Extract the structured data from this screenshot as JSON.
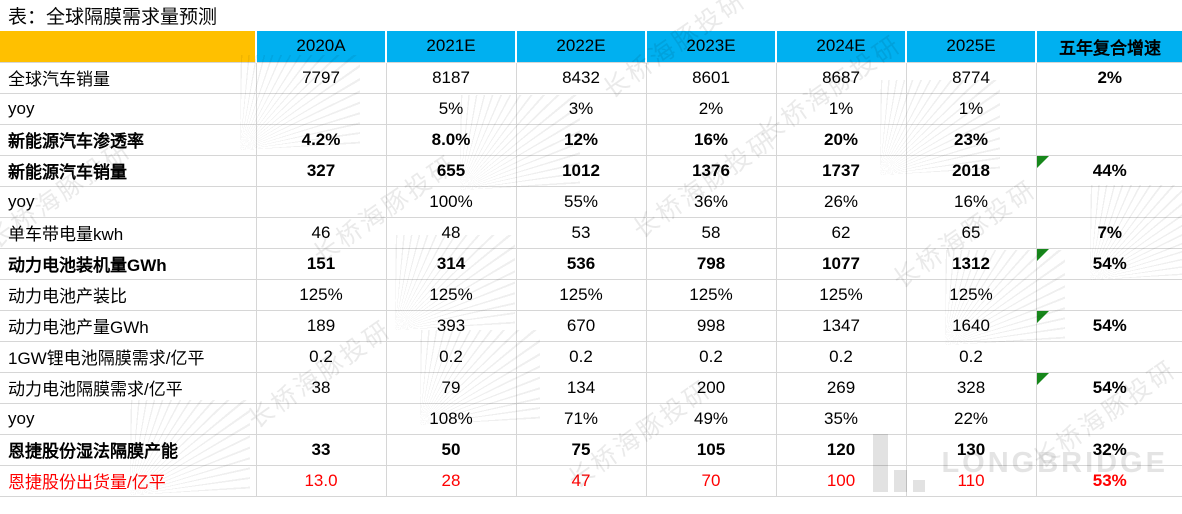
{
  "title": "表：全球隔膜需求量预测",
  "table": {
    "corner_label": "",
    "columns": [
      "2020A",
      "2021E",
      "2022E",
      "2023E",
      "2024E",
      "2025E"
    ],
    "cagr_column": "五年复合增速",
    "rows": [
      {
        "label": "全球汽车销量",
        "values": [
          "7797",
          "8187",
          "8432",
          "8601",
          "8687",
          "8774"
        ],
        "cagr": "2%",
        "bold": false,
        "red": false,
        "flag": false
      },
      {
        "label": "yoy",
        "values": [
          "",
          "5%",
          "3%",
          "2%",
          "1%",
          "1%"
        ],
        "cagr": "",
        "bold": false,
        "red": false,
        "flag": false
      },
      {
        "label": "新能源汽车渗透率",
        "values": [
          "4.2%",
          "8.0%",
          "12%",
          "16%",
          "20%",
          "23%"
        ],
        "cagr": "",
        "bold": true,
        "red": false,
        "flag": false
      },
      {
        "label": "新能源汽车销量",
        "values": [
          "327",
          "655",
          "1012",
          "1376",
          "1737",
          "2018"
        ],
        "cagr": "44%",
        "bold": true,
        "red": false,
        "flag": true
      },
      {
        "label": "yoy",
        "values": [
          "",
          "100%",
          "55%",
          "36%",
          "26%",
          "16%"
        ],
        "cagr": "",
        "bold": false,
        "red": false,
        "flag": false
      },
      {
        "label": "单车带电量kwh",
        "values": [
          "46",
          "48",
          "53",
          "58",
          "62",
          "65"
        ],
        "cagr": "7%",
        "bold": false,
        "red": false,
        "flag": false
      },
      {
        "label": "动力电池装机量GWh",
        "values": [
          "151",
          "314",
          "536",
          "798",
          "1077",
          "1312"
        ],
        "cagr": "54%",
        "bold": true,
        "red": false,
        "flag": true
      },
      {
        "label": "动力电池产装比",
        "values": [
          "125%",
          "125%",
          "125%",
          "125%",
          "125%",
          "125%"
        ],
        "cagr": "",
        "bold": false,
        "red": false,
        "flag": false
      },
      {
        "label": "动力电池产量GWh",
        "values": [
          "189",
          "393",
          "670",
          "998",
          "1347",
          "1640"
        ],
        "cagr": "54%",
        "bold": false,
        "red": false,
        "flag": true
      },
      {
        "label": "1GW锂电池隔膜需求/亿平",
        "values": [
          "0.2",
          "0.2",
          "0.2",
          "0.2",
          "0.2",
          "0.2"
        ],
        "cagr": "",
        "bold": false,
        "red": false,
        "flag": false
      },
      {
        "label": "动力电池隔膜需求/亿平",
        "values": [
          "38",
          "79",
          "134",
          "200",
          "269",
          "328"
        ],
        "cagr": "54%",
        "bold": false,
        "red": false,
        "flag": true
      },
      {
        "label": "yoy",
        "values": [
          "",
          "108%",
          "71%",
          "49%",
          "35%",
          "22%"
        ],
        "cagr": "",
        "bold": false,
        "red": false,
        "flag": false
      },
      {
        "label": "恩捷股份湿法隔膜产能",
        "values": [
          "33",
          "50",
          "75",
          "105",
          "120",
          "130"
        ],
        "cagr": "32%",
        "bold": true,
        "red": false,
        "flag": false
      },
      {
        "label": "恩捷股份出货量/亿平",
        "values": [
          "13.0",
          "28",
          "47",
          "70",
          "100",
          "110"
        ],
        "cagr": "53%",
        "bold": false,
        "red": true,
        "flag": false
      }
    ]
  },
  "watermark": {
    "text": "长桥海豚投研",
    "brand": "LONGBRIDGE"
  },
  "colors": {
    "header_yellow": "#FFC000",
    "header_cyan": "#00B0F0",
    "red_text": "#FF0000",
    "flag_green": "#17871B",
    "grid_gray": "#D6D6D6"
  }
}
